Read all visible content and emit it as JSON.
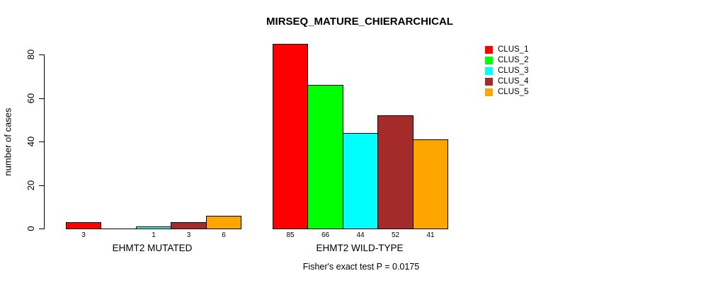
{
  "title": "MIRSEQ_MATURE_CHIERARCHICAL",
  "chart_data": {
    "type": "bar",
    "title": "MIRSEQ_MATURE_CHIERARCHICAL",
    "xlabel": "",
    "ylabel": "number of cases",
    "ylim": [
      0,
      85
    ],
    "yticks": [
      0,
      20,
      40,
      60,
      80
    ],
    "grid": false,
    "legend_position": "top-right",
    "categories": [
      "CLUS_1",
      "CLUS_2",
      "CLUS_3",
      "CLUS_4",
      "CLUS_5"
    ],
    "colors": [
      "#FF0000",
      "#00FF00",
      "#00FFFF",
      "#A52A2A",
      "#FFA500"
    ],
    "series": [
      {
        "name": "EHMT2 MUTATED",
        "values": [
          3,
          0,
          1,
          3,
          6
        ],
        "bar_labels": [
          "3",
          "",
          "1",
          "3",
          "6"
        ]
      },
      {
        "name": "EHMT2 WILD-TYPE",
        "values": [
          85,
          66,
          44,
          52,
          41
        ],
        "bar_labels": [
          "85",
          "66",
          "44",
          "52",
          "41"
        ]
      }
    ],
    "annotation": "Fisher's exact test P = 0.0175"
  }
}
